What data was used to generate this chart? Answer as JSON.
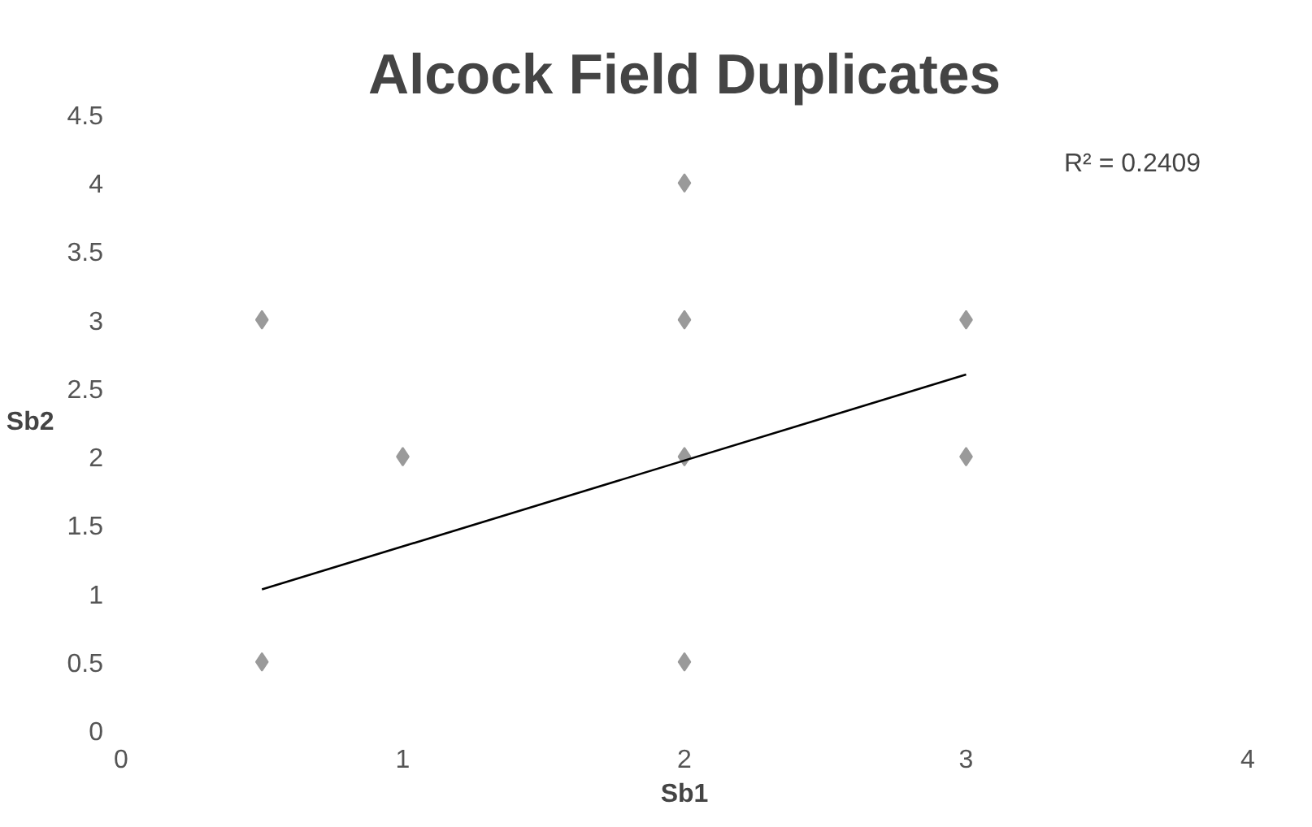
{
  "chart_data": {
    "type": "scatter",
    "title": "Alcock Field Duplicates",
    "xlabel": "Sb1",
    "ylabel": "Sb2",
    "xlim": [
      0,
      4
    ],
    "xticks": [
      0,
      1,
      2,
      3,
      4
    ],
    "ylim": [
      0,
      4.5
    ],
    "yticks": [
      0,
      0.5,
      1,
      1.5,
      2,
      2.5,
      3,
      3.5,
      4,
      4.5
    ],
    "grid": false,
    "marker": "diamond",
    "annotations": [
      "R² = 0.2409"
    ],
    "series": [
      {
        "color": "#9a9a9a",
        "x": [
          0.5,
          0.5,
          1,
          2,
          2,
          2,
          2,
          3,
          3
        ],
        "values": [
          3,
          0.5,
          2,
          4,
          3,
          2,
          0.5,
          3,
          2
        ]
      },
      {
        "type": "line",
        "color": "#000000",
        "marker": "none",
        "line_style": "solid",
        "x": [
          0.5,
          3
        ],
        "values": [
          1.03,
          2.6
        ]
      }
    ]
  }
}
